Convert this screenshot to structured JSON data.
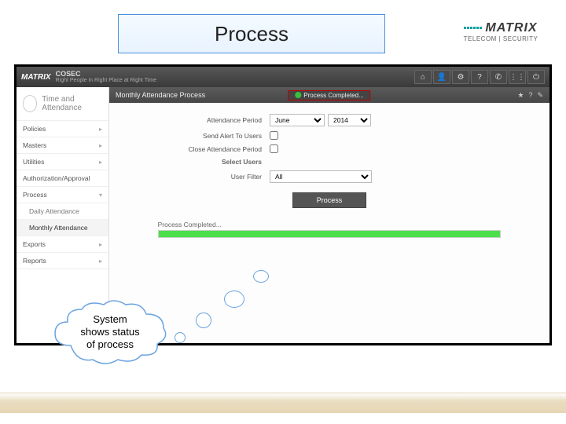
{
  "slide": {
    "title": "Process"
  },
  "brand": {
    "name": "MATRIX",
    "sub": "TELECOM | SECURITY"
  },
  "topbar": {
    "logo": "MATRIX",
    "product": "COSEC",
    "tagline": "Right People in Right Place at Right Time",
    "icons": [
      "home-icon",
      "user-icon",
      "gear-icon",
      "help-icon",
      "phone-icon",
      "grid-icon",
      "power-icon"
    ],
    "glyphs": [
      "⌂",
      "👤",
      "⚙",
      "?",
      "✆",
      "⋮⋮",
      "⏻"
    ]
  },
  "sidebar": {
    "module_title": "Time and Attendance",
    "items": [
      {
        "label": "Policies",
        "expandable": true
      },
      {
        "label": "Masters",
        "expandable": true
      },
      {
        "label": "Utilities",
        "expandable": true
      },
      {
        "label": "Authorization/Approval",
        "expandable": false
      },
      {
        "label": "Process",
        "expandable": true,
        "expanded": true
      },
      {
        "label": "Daily Attendance",
        "sub": true
      },
      {
        "label": "Monthly Attendance",
        "sub": true,
        "active": true
      },
      {
        "label": "Exports",
        "expandable": true
      },
      {
        "label": "Reports",
        "expandable": true
      }
    ]
  },
  "breadcrumb": {
    "title": "Monthly Attendance Process",
    "status_text": "Process Completed...",
    "right_icons": [
      "★",
      "?",
      "✎"
    ]
  },
  "form": {
    "period_label": "Attendance Period",
    "month_options": [
      "June"
    ],
    "month_value": "June",
    "year_options": [
      "2014"
    ],
    "year_value": "2014",
    "send_alert_label": "Send Alert To Users",
    "send_alert_checked": false,
    "close_period_label": "Close Attendance Period",
    "close_period_checked": false,
    "select_users_label": "Select Users",
    "user_filter_label": "User Filter",
    "user_filter_options": [
      "All"
    ],
    "user_filter_value": "All",
    "process_button": "Process"
  },
  "progress": {
    "title": "Process Completed...",
    "percent": 100,
    "fill_color": "#4be04b",
    "track_color": "#e5e5e5"
  },
  "callout": {
    "line1": "System",
    "line2": "shows status",
    "line3": "of process"
  }
}
